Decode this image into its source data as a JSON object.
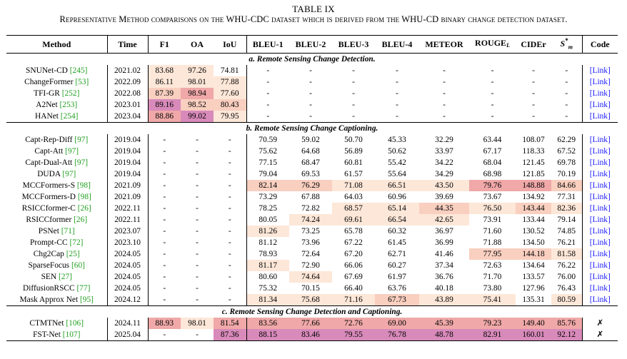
{
  "caption": {
    "label": "TABLE IX",
    "text": "Representative Method comparisons on the WHU-CDC dataset which is derived from the WHU-CD binary change detection dataset."
  },
  "headers": [
    "Method",
    "Time",
    "F1",
    "OA",
    "IoU",
    "BLEU-1",
    "BLEU-2",
    "BLEU-3",
    "BLEU-4",
    "METEOR",
    "ROUGE",
    "CIDEr",
    "S",
    "Code"
  ],
  "header_sub": {
    "rouge": "L",
    "sm_sup": "*",
    "sm_sub": "m"
  },
  "colors": {
    "cell_1": "#fde7d8",
    "cell_2": "#f9cfc0",
    "cell_3": "#f0a8a8",
    "cell_4": "#d88aba",
    "link": "#1a1aff",
    "citation": "#22a022"
  },
  "sections": [
    {
      "title": "a. Remote Sensing Change Detection.",
      "rows": [
        {
          "name": "SNUNet-CD",
          "cite": "[245]",
          "cells": [
            "2021.02",
            "83.68",
            "97.26",
            "74.81",
            "-",
            "-",
            "-",
            "-",
            "-",
            "-",
            "-",
            "-",
            "[Link]"
          ],
          "shade": [
            0,
            1,
            1,
            0,
            0,
            0,
            0,
            0,
            0,
            0,
            0,
            0,
            0
          ]
        },
        {
          "name": "ChangeFormer",
          "cite": "[53]",
          "cells": [
            "2022.09",
            "86.11",
            "98.01",
            "77.88",
            "-",
            "-",
            "-",
            "-",
            "-",
            "-",
            "-",
            "-",
            "[Link]"
          ],
          "shade": [
            0,
            1,
            1,
            1,
            0,
            0,
            0,
            0,
            0,
            0,
            0,
            0,
            0
          ]
        },
        {
          "name": "TFI-GR",
          "cite": "[252]",
          "cells": [
            "2022.08",
            "87.39",
            "98.94",
            "77.60",
            "-",
            "-",
            "-",
            "-",
            "-",
            "-",
            "-",
            "-",
            "[Link]"
          ],
          "shade": [
            0,
            2,
            3,
            1,
            0,
            0,
            0,
            0,
            0,
            0,
            0,
            0,
            0
          ]
        },
        {
          "name": "A2Net",
          "cite": "[253]",
          "cells": [
            "2023.01",
            "89.16",
            "98.52",
            "80.43",
            "-",
            "-",
            "-",
            "-",
            "-",
            "-",
            "-",
            "-",
            "[Link]"
          ],
          "shade": [
            0,
            4,
            2,
            2,
            0,
            0,
            0,
            0,
            0,
            0,
            0,
            0,
            0
          ]
        },
        {
          "name": "HANet",
          "cite": "[254]",
          "cells": [
            "2023.04",
            "88.86",
            "99.02",
            "79.95",
            "-",
            "-",
            "-",
            "-",
            "-",
            "-",
            "-",
            "-",
            "[Link]"
          ],
          "shade": [
            0,
            3,
            4,
            1,
            0,
            0,
            0,
            0,
            0,
            0,
            0,
            0,
            0
          ]
        }
      ]
    },
    {
      "title": "b. Remote Sensing Change Captioning.",
      "rows": [
        {
          "name": "Capt-Rep-Diff",
          "cite": "[97]",
          "cells": [
            "2019.04",
            "-",
            "-",
            "-",
            "70.59",
            "59.02",
            "50.70",
            "45.33",
            "32.29",
            "63.44",
            "108.07",
            "62.29",
            "[Link]"
          ],
          "shade": [
            0,
            0,
            0,
            0,
            0,
            0,
            0,
            0,
            0,
            0,
            0,
            0,
            0
          ]
        },
        {
          "name": "Capt-Att",
          "cite": "[97]",
          "cells": [
            "2019.04",
            "-",
            "-",
            "-",
            "75.62",
            "64.68",
            "56.89",
            "50.62",
            "33.97",
            "67.17",
            "118.33",
            "67.52",
            "[Link]"
          ],
          "shade": [
            0,
            0,
            0,
            0,
            0,
            0,
            0,
            0,
            0,
            0,
            0,
            0,
            0
          ]
        },
        {
          "name": "Capt-Dual-Att",
          "cite": "[97]",
          "cells": [
            "2019.04",
            "-",
            "-",
            "-",
            "77.15",
            "68.47",
            "60.81",
            "55.42",
            "34.22",
            "68.04",
            "121.45",
            "69.78",
            "[Link]"
          ],
          "shade": [
            0,
            0,
            0,
            0,
            0,
            0,
            0,
            0,
            0,
            0,
            0,
            0,
            0
          ]
        },
        {
          "name": "DUDA",
          "cite": "[97]",
          "cells": [
            "2019.04",
            "-",
            "-",
            "-",
            "79.04",
            "69.53",
            "61.57",
            "55.64",
            "34.29",
            "68.98",
            "121.85",
            "70.19",
            "[Link]"
          ],
          "shade": [
            0,
            0,
            0,
            0,
            0,
            0,
            0,
            0,
            0,
            0,
            0,
            0,
            0
          ]
        },
        {
          "name": "MCCFormers-S",
          "cite": "[98]",
          "cells": [
            "2021.09",
            "-",
            "-",
            "-",
            "82.14",
            "76.29",
            "71.08",
            "66.51",
            "43.50",
            "79.76",
            "148.88",
            "84.66",
            "[Link]"
          ],
          "shade": [
            0,
            0,
            0,
            0,
            2,
            2,
            1,
            1,
            1,
            3,
            3,
            2,
            0
          ]
        },
        {
          "name": "MCCFormers-D",
          "cite": "[98]",
          "cells": [
            "2021.09",
            "-",
            "-",
            "-",
            "73.29",
            "67.88",
            "64.03",
            "60.96",
            "39.69",
            "73.67",
            "134.92",
            "77.31",
            "[Link]"
          ],
          "shade": [
            0,
            0,
            0,
            0,
            0,
            0,
            0,
            0,
            0,
            0,
            0,
            0,
            0
          ]
        },
        {
          "name": "RSICCformer-C",
          "cite": "[26]",
          "cells": [
            "2022.11",
            "-",
            "-",
            "-",
            "78.25",
            "72.82",
            "68.57",
            "65.14",
            "44.35",
            "76.50",
            "143.44",
            "82.36",
            "[Link]"
          ],
          "shade": [
            0,
            0,
            0,
            0,
            0,
            0,
            1,
            1,
            2,
            1,
            2,
            1,
            0
          ]
        },
        {
          "name": "RSICCformer",
          "cite": "[26]",
          "cells": [
            "2022.11",
            "-",
            "-",
            "-",
            "80.05",
            "74.24",
            "69.61",
            "66.54",
            "42.65",
            "73.91",
            "133.44",
            "79.14",
            "[Link]"
          ],
          "shade": [
            0,
            0,
            0,
            0,
            0,
            1,
            1,
            1,
            1,
            0,
            0,
            0,
            0
          ]
        },
        {
          "name": "PSNet",
          "cite": "[71]",
          "cells": [
            "2023.07",
            "-",
            "-",
            "-",
            "81.26",
            "73.25",
            "65.78",
            "60.32",
            "36.97",
            "71.60",
            "130.52",
            "74.85",
            "[Link]"
          ],
          "shade": [
            0,
            0,
            0,
            0,
            1,
            0,
            0,
            0,
            0,
            0,
            0,
            0,
            0
          ]
        },
        {
          "name": "Prompt-CC",
          "cite": "[72]",
          "cells": [
            "2023.10",
            "-",
            "-",
            "-",
            "81.12",
            "73.96",
            "67.22",
            "61.45",
            "36.99",
            "71.88",
            "134.50",
            "76.21",
            "[Link]"
          ],
          "shade": [
            0,
            0,
            0,
            0,
            0,
            0,
            0,
            0,
            0,
            0,
            0,
            0,
            0
          ]
        },
        {
          "name": "Chg2Cap",
          "cite": "[25]",
          "cells": [
            "2024.05",
            "-",
            "-",
            "-",
            "78.93",
            "72.64",
            "67.20",
            "62.71",
            "41.46",
            "77.95",
            "144.18",
            "81.58",
            "[Link]"
          ],
          "shade": [
            0,
            0,
            0,
            0,
            0,
            0,
            0,
            0,
            0,
            2,
            2,
            1,
            0
          ]
        },
        {
          "name": "SparseFocus",
          "cite": "[60]",
          "cells": [
            "2024.05",
            "-",
            "-",
            "-",
            "81.17",
            "72.90",
            "66.06",
            "60.27",
            "37.34",
            "72.63",
            "134.64",
            "76.22",
            "[Link]"
          ],
          "shade": [
            0,
            0,
            0,
            0,
            1,
            0,
            0,
            0,
            0,
            0,
            0,
            0,
            0
          ]
        },
        {
          "name": "SEN",
          "cite": "[27]",
          "cells": [
            "2024.05",
            "-",
            "-",
            "-",
            "80.60",
            "74.64",
            "67.69",
            "61.97",
            "36.76",
            "71.70",
            "133.57",
            "76.00",
            "[Link]"
          ],
          "shade": [
            0,
            0,
            0,
            0,
            0,
            1,
            0,
            0,
            0,
            0,
            0,
            0,
            0
          ]
        },
        {
          "name": "DiffusionRSCC",
          "cite": "[77]",
          "cells": [
            "2024.05",
            "-",
            "-",
            "-",
            "75.32",
            "70.15",
            "66.40",
            "63.76",
            "40.18",
            "73.80",
            "127.96",
            "76.43",
            "[Link]"
          ],
          "shade": [
            0,
            0,
            0,
            0,
            0,
            0,
            0,
            0,
            0,
            0,
            0,
            0,
            0
          ]
        },
        {
          "name": "Mask Approx Net",
          "cite": "[95]",
          "cells": [
            "2024.12",
            "-",
            "-",
            "-",
            "81.34",
            "75.68",
            "71.16",
            "67.73",
            "43.89",
            "75.41",
            "135.31",
            "80.59",
            "[Link]"
          ],
          "shade": [
            0,
            0,
            0,
            0,
            1,
            1,
            1,
            2,
            1,
            1,
            0,
            1,
            0
          ]
        }
      ]
    },
    {
      "title": "c. Remote Sensing Change Detection and Captioning.",
      "rows": [
        {
          "name": "CTMTNet",
          "cite": "[106]",
          "cells": [
            "2024.11",
            "88.93",
            "98.01",
            "81.54",
            "83.56",
            "77.66",
            "72.76",
            "69.00",
            "45.39",
            "79.23",
            "149.40",
            "85.76",
            "✗"
          ],
          "shade": [
            0,
            3,
            1,
            3,
            3,
            3,
            3,
            3,
            3,
            3,
            3,
            3,
            0
          ]
        },
        {
          "name": "FST-Net",
          "cite": "[107]",
          "cells": [
            "2025.04",
            "-",
            "-",
            "87.36",
            "88.15",
            "83.46",
            "79.55",
            "76.78",
            "48.78",
            "82.91",
            "160.01",
            "92.12",
            "✗"
          ],
          "shade": [
            0,
            0,
            0,
            4,
            4,
            4,
            4,
            4,
            4,
            4,
            4,
            4,
            0
          ]
        }
      ]
    }
  ]
}
